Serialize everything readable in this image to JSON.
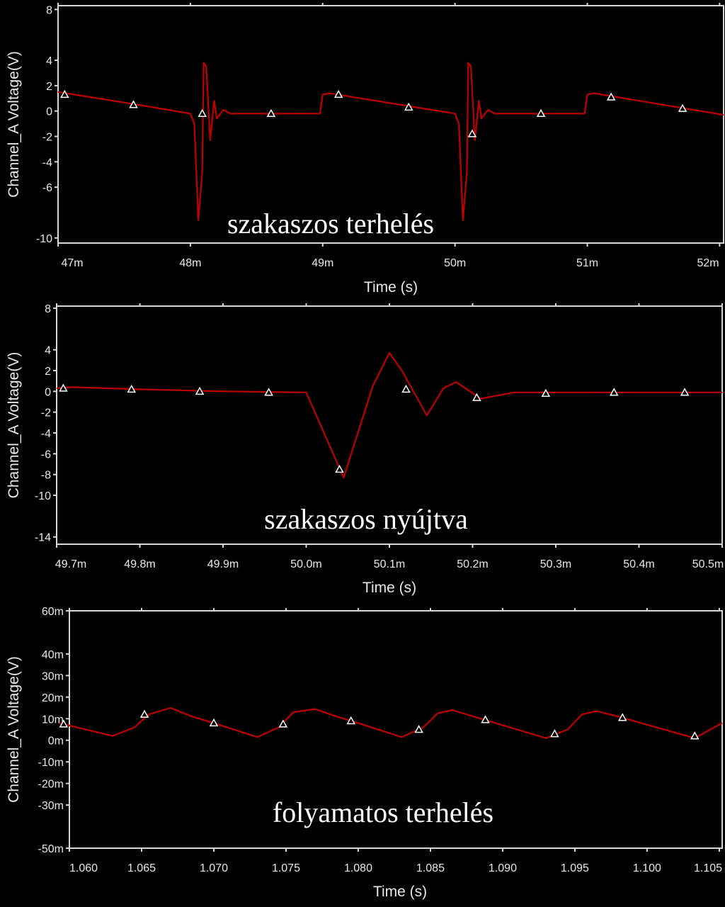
{
  "chart_data": [
    {
      "type": "line",
      "xlabel": "Time (s)",
      "ylabel": "Channel_A Voltage(V)",
      "annotation": "szakaszos terhelés",
      "xlim": [
        47.0,
        52.03
      ],
      "ylim": [
        -10.4,
        8.3
      ],
      "x_ticks": [
        {
          "v": 47,
          "label": "47m"
        },
        {
          "v": 48,
          "label": "48m"
        },
        {
          "v": 49,
          "label": "49m"
        },
        {
          "v": 50,
          "label": "50m"
        },
        {
          "v": 51,
          "label": "51m"
        },
        {
          "v": 52,
          "label": "52m"
        }
      ],
      "y_ticks": [
        {
          "v": 8,
          "label": "8"
        },
        {
          "v": 4,
          "label": "4"
        },
        {
          "v": 2,
          "label": "2"
        },
        {
          "v": 0,
          "label": "0"
        },
        {
          "v": -2,
          "label": "-2"
        },
        {
          "v": -4,
          "label": "-4"
        },
        {
          "v": -6,
          "label": "-6"
        },
        {
          "v": -10,
          "label": "-10"
        }
      ],
      "line_color": "#c00000",
      "series": [
        {
          "x": [
            47.0,
            47.6,
            48.0,
            48.03,
            48.06,
            48.09,
            48.1,
            48.12,
            48.15,
            48.18,
            48.2,
            48.25,
            48.3,
            48.98,
            49.0,
            49.05,
            50.0,
            50.03,
            50.06,
            50.09,
            50.1,
            50.12,
            50.15,
            50.18,
            50.2,
            50.25,
            50.3,
            50.98,
            51.0,
            51.05,
            52.03
          ],
          "y": [
            1.5,
            0.5,
            -0.2,
            -1,
            -8.6,
            -4.8,
            3.8,
            3.5,
            -2.3,
            0.8,
            -0.6,
            0.1,
            -0.2,
            -0.2,
            1.3,
            1.4,
            -0.2,
            -1,
            -8.6,
            -4.8,
            3.8,
            3.5,
            -2.3,
            0.8,
            -0.6,
            0.1,
            -0.2,
            -0.2,
            1.3,
            1.4,
            -0.3
          ]
        }
      ],
      "markers": {
        "x": [
          47.05,
          47.57,
          48.09,
          48.61,
          49.12,
          49.65,
          50.13,
          50.65,
          51.18,
          51.72
        ],
        "y": [
          1.3,
          0.5,
          -0.2,
          -0.2,
          1.3,
          0.3,
          -1.8,
          -0.2,
          1.1,
          0.2
        ]
      }
    },
    {
      "type": "line",
      "xlabel": "Time (s)",
      "ylabel": "Channel_A Voltage(V)",
      "annotation": "szakaszos nyújtva",
      "xlim": [
        49.7,
        50.5
      ],
      "ylim": [
        -14.7,
        8.2
      ],
      "x_ticks": [
        {
          "v": 49.7,
          "label": "49.7m"
        },
        {
          "v": 49.8,
          "label": "49.8m"
        },
        {
          "v": 49.9,
          "label": "49.9m"
        },
        {
          "v": 50.0,
          "label": "50.0m"
        },
        {
          "v": 50.1,
          "label": "50.1m"
        },
        {
          "v": 50.2,
          "label": "50.2m"
        },
        {
          "v": 50.3,
          "label": "50.3m"
        },
        {
          "v": 50.4,
          "label": "50.4m"
        },
        {
          "v": 50.5,
          "label": "50.5m"
        }
      ],
      "y_ticks": [
        {
          "v": 8,
          "label": "8"
        },
        {
          "v": 4,
          "label": "4"
        },
        {
          "v": 2,
          "label": "2"
        },
        {
          "v": 0,
          "label": "0"
        },
        {
          "v": -2,
          "label": "-2"
        },
        {
          "v": -4,
          "label": "-4"
        },
        {
          "v": -6,
          "label": "-6"
        },
        {
          "v": -8,
          "label": "-8"
        },
        {
          "v": -10,
          "label": "-10"
        },
        {
          "v": -14,
          "label": "-14"
        }
      ],
      "line_color": "#c00000",
      "series": [
        {
          "x": [
            49.7,
            49.72,
            49.8,
            49.9,
            50.0,
            50.045,
            50.08,
            50.1,
            50.115,
            50.145,
            50.165,
            50.18,
            50.21,
            50.25,
            50.35,
            50.5
          ],
          "y": [
            0.3,
            0.4,
            0.2,
            0.0,
            -0.1,
            -8.3,
            0.5,
            3.7,
            2.0,
            -2.3,
            0.3,
            0.9,
            -0.7,
            -0.1,
            -0.1,
            -0.1
          ]
        }
      ],
      "markers": {
        "x": [
          49.708,
          49.79,
          49.872,
          49.955,
          50.04,
          50.12,
          50.205,
          50.288,
          50.37,
          50.455
        ],
        "y": [
          0.3,
          0.2,
          0.0,
          -0.1,
          -7.5,
          0.2,
          -0.6,
          -0.2,
          -0.1,
          -0.1
        ]
      }
    },
    {
      "type": "line",
      "xlabel": "Time (s)",
      "ylabel": "Channel_A Voltage(V)",
      "annotation": "folyamatos terhelés",
      "xlim": [
        1.06,
        1.1052
      ],
      "ylim": [
        -50,
        60
      ],
      "x_ticks": [
        {
          "v": 1.06,
          "label": "1.060"
        },
        {
          "v": 1.065,
          "label": "1.065"
        },
        {
          "v": 1.07,
          "label": "1.070"
        },
        {
          "v": 1.075,
          "label": "1.075"
        },
        {
          "v": 1.08,
          "label": "1.080"
        },
        {
          "v": 1.085,
          "label": "1.085"
        },
        {
          "v": 1.09,
          "label": "1.090"
        },
        {
          "v": 1.095,
          "label": "1.095"
        },
        {
          "v": 1.1,
          "label": "1.100"
        },
        {
          "v": 1.105,
          "label": "1.105"
        }
      ],
      "y_ticks": [
        {
          "v": 60,
          "label": "60m"
        },
        {
          "v": 40,
          "label": "40m"
        },
        {
          "v": 30,
          "label": "30m"
        },
        {
          "v": 20,
          "label": "20m"
        },
        {
          "v": 10,
          "label": "10m"
        },
        {
          "v": 0,
          "label": "0m"
        },
        {
          "v": -10,
          "label": "-10m"
        },
        {
          "v": -20,
          "label": "-20m"
        },
        {
          "v": -30,
          "label": "-30m"
        },
        {
          "v": -50,
          "label": "-50m"
        }
      ],
      "line_color": "#c00000",
      "series": [
        {
          "x": [
            1.0593,
            1.063,
            1.0645,
            1.0655,
            1.067,
            1.0685,
            1.07,
            1.073,
            1.0745,
            1.0755,
            1.077,
            1.0785,
            1.0795,
            1.083,
            1.0845,
            1.0855,
            1.0865,
            1.0885,
            1.093,
            1.0945,
            1.0955,
            1.0965,
            1.098,
            1.1033,
            1.1052
          ],
          "y": [
            8,
            2,
            6,
            12,
            15,
            11,
            8,
            1.5,
            6,
            13,
            14.5,
            11,
            9,
            1.5,
            6,
            12.5,
            14,
            10,
            1,
            5,
            12,
            13.5,
            11,
            1,
            8
          ]
        }
      ],
      "markers": {
        "x": [
          1.0596,
          1.0652,
          1.07,
          1.0748,
          1.0795,
          1.0842,
          1.0888,
          1.0936,
          1.0983,
          1.1033
        ],
        "y": [
          7.5,
          12,
          8,
          7.5,
          9,
          5,
          9.5,
          3,
          10.5,
          2
        ]
      }
    }
  ]
}
